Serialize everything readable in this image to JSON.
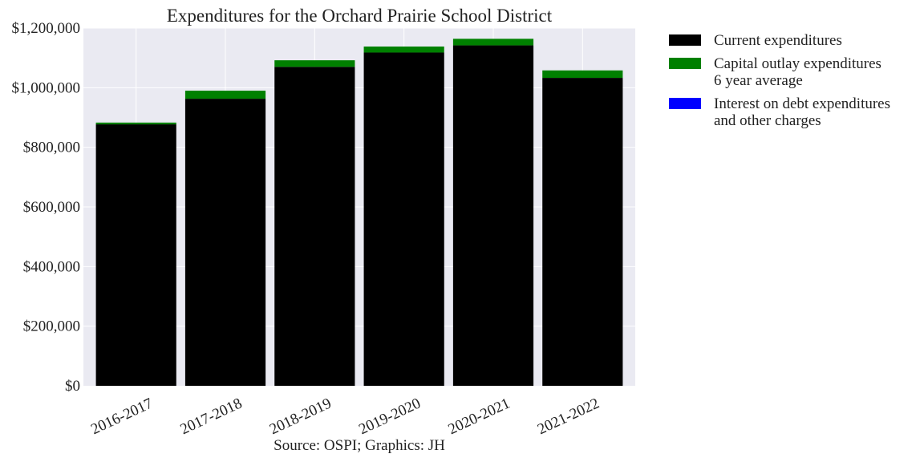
{
  "chart_data": {
    "type": "bar",
    "stacked": true,
    "title": "Expenditures for the Orchard Prairie School District",
    "xlabel": "Source: OSPI; Graphics: JH",
    "ylabel": "",
    "categories": [
      "2016-2017",
      "2017-2018",
      "2018-2019",
      "2019-2020",
      "2020-2021",
      "2021-2022"
    ],
    "series": [
      {
        "name": "Current expenditures",
        "color": "#000000",
        "values": [
          877000,
          963000,
          1070000,
          1118000,
          1142000,
          1033000
        ]
      },
      {
        "name": "Capital outlay expenditures\n6 year average",
        "color": "#008000",
        "values": [
          6000,
          27000,
          22000,
          20000,
          22000,
          25000
        ]
      },
      {
        "name": "Interest on debt expenditures\nand other charges",
        "color": "#0000ff",
        "values": [
          0,
          0,
          0,
          0,
          0,
          0
        ]
      }
    ],
    "ylim": [
      0,
      1200000
    ],
    "yticks": [
      0,
      200000,
      400000,
      600000,
      800000,
      1000000,
      1200000
    ],
    "ytick_labels": [
      "$0",
      "$200,000",
      "$400,000",
      "$600,000",
      "$800,000",
      "$1,000,000",
      "$1,200,000"
    ],
    "grid": true,
    "legend_position": "outside-right"
  }
}
